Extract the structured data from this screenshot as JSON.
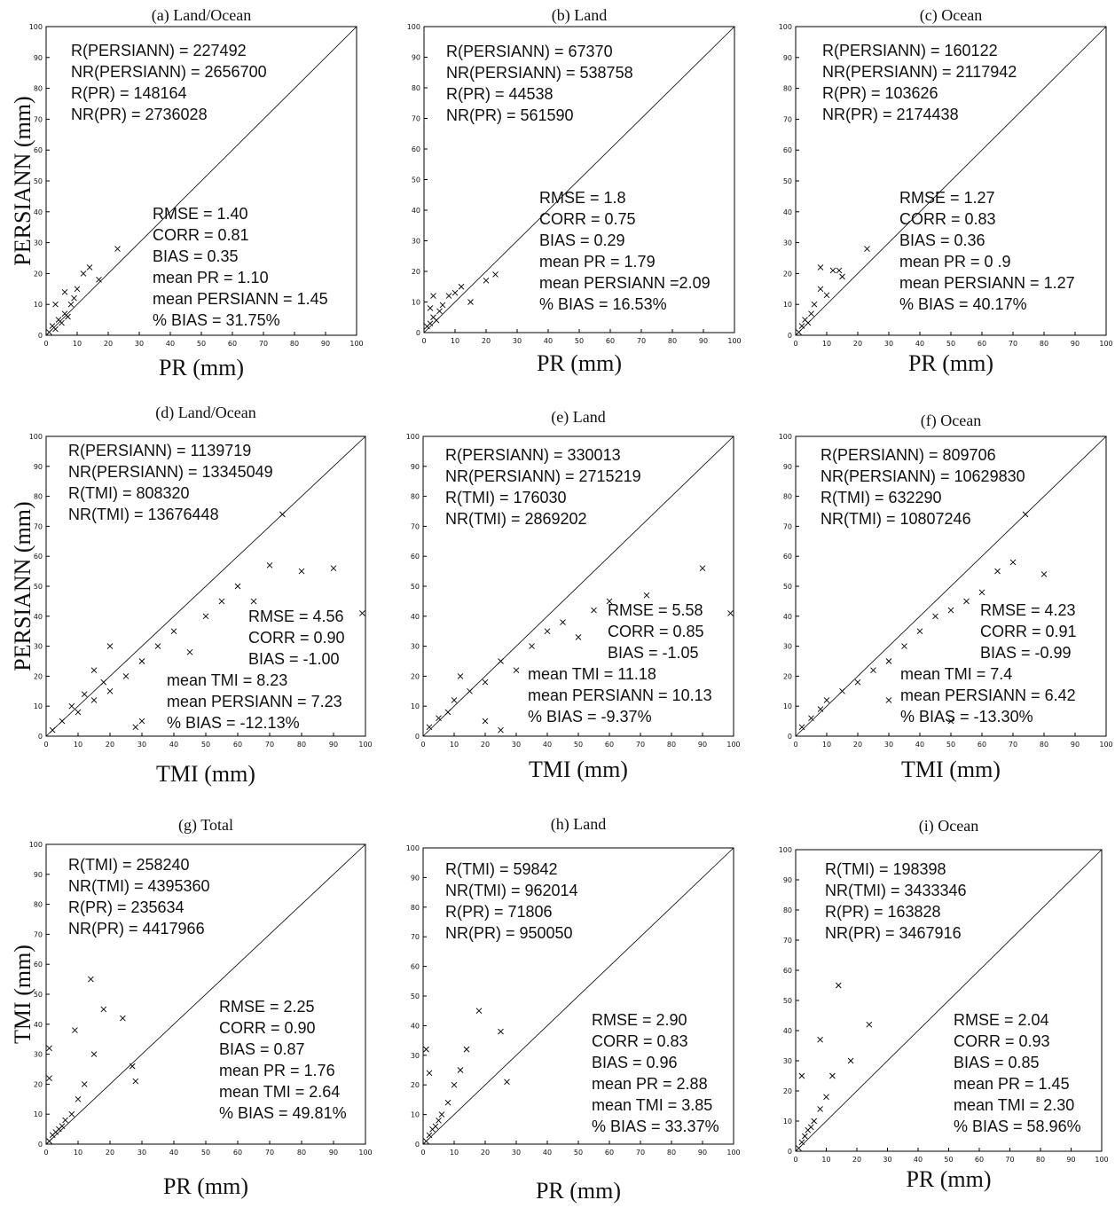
{
  "chart_data": [
    {
      "type": "scatter",
      "title": "(a) Land/Ocean",
      "x_label": "PR (mm)",
      "y_label": "PERSIANN (mm)",
      "xlim": [
        0,
        100
      ],
      "ylim": [
        0,
        100
      ],
      "xticks": [
        0,
        10,
        20,
        30,
        40,
        50,
        60,
        70,
        80,
        90,
        100
      ],
      "yticks": [
        0,
        10,
        20,
        30,
        40,
        50,
        60,
        70,
        80,
        90,
        100
      ],
      "annotations": [
        "R(PERSIANN) = 227492",
        "NR(PERSIANN) = 2656700",
        "R(PR) = 148164",
        "NR(PR) = 2736028",
        "RMSE = 1.40",
        "CORR = 0.81",
        "BIAS   = 0.35",
        "mean PR = 1.10",
        "mean PERSIANN = 1.45",
        "% BIAS = 31.75%"
      ],
      "series": [
        {
          "color": "#000000",
          "x": [
            1,
            2,
            3,
            4,
            5,
            6,
            7,
            8,
            9,
            10,
            12,
            14,
            17,
            23,
            3,
            6
          ],
          "values": [
            1,
            3,
            2,
            5,
            4,
            7,
            6,
            10,
            12,
            15,
            20,
            22,
            18,
            28,
            10,
            14
          ]
        }
      ]
    },
    {
      "type": "scatter",
      "title": "(b) Land",
      "x_label": "PR (mm)",
      "xlim": [
        0,
        100
      ],
      "ylim": [
        0,
        100
      ],
      "xticks": [
        0,
        10,
        20,
        30,
        40,
        50,
        60,
        70,
        80,
        90,
        100
      ],
      "yticks": [
        0,
        10,
        20,
        30,
        40,
        50,
        60,
        70,
        80,
        90,
        100
      ],
      "annotations": [
        "R(PERSIANN) = 67370",
        "NR(PERSIANN) = 538758",
        "R(PR) = 44538",
        "NR(PR) = 561590",
        "RMSE = 1.8",
        "CORR = 0.75",
        "BIAS   = 0.29",
        "mean PR = 1.79",
        "mean PERSIANN =2.09",
        "% BIAS = 16.53%"
      ],
      "series": [
        {
          "color": "#000000",
          "x": [
            1,
            2,
            3,
            4,
            5,
            6,
            8,
            10,
            12,
            15,
            20,
            23,
            3,
            2
          ],
          "values": [
            2,
            3,
            5,
            4,
            7,
            9,
            12,
            13,
            15,
            10,
            17,
            19,
            12,
            8
          ]
        }
      ]
    },
    {
      "type": "scatter",
      "title": "(c) Ocean",
      "x_label": "PR (mm)",
      "xlim": [
        0,
        100
      ],
      "ylim": [
        0,
        100
      ],
      "xticks": [
        0,
        10,
        20,
        30,
        40,
        50,
        60,
        70,
        80,
        90,
        100
      ],
      "yticks": [
        0,
        10,
        20,
        30,
        40,
        50,
        60,
        70,
        80,
        90,
        100
      ],
      "annotations": [
        "R(PERSIANN) = 160122",
        "NR(PERSIANN) = 2117942",
        "R(PR) = 103626",
        "NR(PR) = 2174438",
        "RMSE = 1.27",
        "CORR = 0.83",
        "BIAS   = 0.36",
        "mean PR = 0 .9",
        "mean PERSIANN = 1.27",
        "% BIAS = 40.17%"
      ],
      "series": [
        {
          "color": "#000000",
          "x": [
            1,
            2,
            3,
            4,
            5,
            6,
            8,
            10,
            12,
            15,
            23,
            8,
            14
          ],
          "values": [
            1,
            3,
            5,
            4,
            7,
            10,
            15,
            13,
            21,
            19,
            28,
            22,
            21
          ]
        }
      ]
    },
    {
      "type": "scatter",
      "title": "(d) Land/Ocean",
      "x_label": "TMI (mm)",
      "y_label": "PERSIANN (mm)",
      "xlim": [
        0,
        100
      ],
      "ylim": [
        0,
        100
      ],
      "xticks": [
        0,
        10,
        20,
        30,
        40,
        50,
        60,
        70,
        80,
        90,
        100
      ],
      "yticks": [
        0,
        10,
        20,
        30,
        40,
        50,
        60,
        70,
        80,
        90,
        100
      ],
      "annotations": [
        "R(PERSIANN) = 1139719",
        "NR(PERSIANN) = 13345049",
        "R(TMI) = 808320",
        "NR(TMI) = 13676448",
        "RMSE = 4.56",
        "CORR = 0.90",
        "BIAS   = -1.00",
        "mean TMI = 8.23",
        "mean PERSIANN = 7.23",
        "% BIAS = -12.13%"
      ],
      "series": [
        {
          "color": "#000000",
          "x": [
            2,
            5,
            8,
            10,
            12,
            15,
            18,
            20,
            25,
            30,
            35,
            40,
            45,
            50,
            55,
            60,
            65,
            70,
            74,
            80,
            90,
            99,
            20,
            30,
            15,
            28
          ],
          "values": [
            2,
            5,
            10,
            8,
            14,
            12,
            18,
            15,
            20,
            25,
            30,
            35,
            28,
            40,
            45,
            50,
            45,
            57,
            74,
            55,
            56,
            41,
            30,
            5,
            22,
            3
          ]
        }
      ]
    },
    {
      "type": "scatter",
      "title": "(e) Land",
      "x_label": "TMI (mm)",
      "xlim": [
        0,
        100
      ],
      "ylim": [
        0,
        100
      ],
      "xticks": [
        0,
        10,
        20,
        30,
        40,
        50,
        60,
        70,
        80,
        90,
        100
      ],
      "yticks": [
        0,
        10,
        20,
        30,
        40,
        50,
        60,
        70,
        80,
        90,
        100
      ],
      "annotations": [
        "R(PERSIANN) = 330013",
        "NR(PERSIANN) = 2715219",
        "R(TMI) = 176030",
        "NR(TMI) = 2869202",
        "RMSE = 5.58",
        "CORR = 0.85",
        "BIAS   = -1.05",
        "mean TMI = 11.18",
        "mean PERSIANN = 10.13",
        "% BIAS = -9.37%"
      ],
      "series": [
        {
          "color": "#000000",
          "x": [
            2,
            5,
            8,
            10,
            15,
            20,
            25,
            30,
            35,
            40,
            45,
            50,
            55,
            60,
            72,
            90,
            99,
            20,
            12,
            25
          ],
          "values": [
            3,
            6,
            8,
            12,
            15,
            18,
            25,
            22,
            30,
            35,
            38,
            33,
            42,
            45,
            47,
            56,
            41,
            5,
            20,
            2
          ]
        }
      ]
    },
    {
      "type": "scatter",
      "title": "(f) Ocean",
      "x_label": "TMI (mm)",
      "xlim": [
        0,
        100
      ],
      "ylim": [
        0,
        100
      ],
      "xticks": [
        0,
        10,
        20,
        30,
        40,
        50,
        60,
        70,
        80,
        90,
        100
      ],
      "yticks": [
        0,
        10,
        20,
        30,
        40,
        50,
        60,
        70,
        80,
        90,
        100
      ],
      "annotations": [
        "R(PERSIANN) = 809706",
        "NR(PERSIANN) = 10629830",
        "R(TMI) = 632290",
        "NR(TMI) = 10807246",
        "RMSE = 4.23",
        "CORR = 0.91",
        "BIAS   = -0.99",
        "mean TMI = 7.4",
        "mean PERSIANN = 6.42",
        "% BIAS = -13.30%"
      ],
      "series": [
        {
          "color": "#000000",
          "x": [
            2,
            5,
            8,
            10,
            15,
            20,
            25,
            30,
            35,
            40,
            45,
            50,
            55,
            60,
            65,
            70,
            74,
            80,
            50,
            30
          ],
          "values": [
            3,
            6,
            9,
            12,
            15,
            18,
            22,
            25,
            30,
            35,
            40,
            42,
            45,
            48,
            55,
            58,
            74,
            54,
            5,
            12
          ]
        }
      ]
    },
    {
      "type": "scatter",
      "title": "(g) Total",
      "x_label": "PR (mm)",
      "y_label": "TMI (mm)",
      "xlim": [
        0,
        100
      ],
      "ylim": [
        0,
        100
      ],
      "xticks": [
        0,
        10,
        20,
        30,
        40,
        50,
        60,
        70,
        80,
        90,
        100
      ],
      "yticks": [
        0,
        10,
        20,
        30,
        40,
        50,
        60,
        70,
        80,
        90,
        100
      ],
      "annotations": [
        "R(TMI) = 258240",
        "NR(TMI) = 4395360",
        "R(PR) = 235634",
        "NR(PR) = 4417966",
        "RMSE = 2.25",
        "CORR = 0.90",
        "BIAS   = 0.87",
        "mean PR = 1.76",
        "mean TMI = 2.64",
        "% BIAS = 49.81%"
      ],
      "series": [
        {
          "color": "#000000",
          "x": [
            1,
            2,
            3,
            4,
            5,
            6,
            8,
            10,
            12,
            14,
            18,
            24,
            27,
            28,
            15,
            9,
            1,
            1
          ],
          "values": [
            1,
            3,
            4,
            5,
            6,
            8,
            10,
            15,
            20,
            55,
            45,
            42,
            26,
            21,
            30,
            38,
            32,
            22
          ]
        }
      ]
    },
    {
      "type": "scatter",
      "title": "(h) Land",
      "x_label": "PR (mm)",
      "xlim": [
        0,
        100
      ],
      "ylim": [
        0,
        100
      ],
      "xticks": [
        0,
        10,
        20,
        30,
        40,
        50,
        60,
        70,
        80,
        90,
        100
      ],
      "yticks": [
        0,
        10,
        20,
        30,
        40,
        50,
        60,
        70,
        80,
        90,
        100
      ],
      "annotations": [
        "R(TMI) = 59842",
        "NR(TMI) = 962014",
        "R(PR) = 71806",
        "NR(PR) = 950050",
        "RMSE = 2.90",
        "CORR = 0.83",
        "BIAS   = 0.96",
        "mean PR = 2.88",
        "mean TMI = 3.85",
        "% BIAS = 33.37%"
      ],
      "series": [
        {
          "color": "#000000",
          "x": [
            1,
            2,
            3,
            4,
            5,
            6,
            8,
            10,
            12,
            14,
            18,
            25,
            27,
            1,
            2
          ],
          "values": [
            1,
            3,
            5,
            6,
            8,
            10,
            14,
            20,
            25,
            32,
            45,
            38,
            21,
            32,
            24
          ]
        }
      ]
    },
    {
      "type": "scatter",
      "title": "(i) Ocean",
      "x_label": "PR (mm)",
      "xlim": [
        0,
        100
      ],
      "ylim": [
        0,
        100
      ],
      "xticks": [
        0,
        10,
        20,
        30,
        40,
        50,
        60,
        70,
        80,
        90,
        100
      ],
      "yticks": [
        0,
        10,
        20,
        30,
        40,
        50,
        60,
        70,
        80,
        90,
        100
      ],
      "annotations": [
        "R(TMI) = 198398",
        "NR(TMI) = 3433346",
        "R(PR) = 163828",
        "NR(PR) = 3467916",
        "RMSE = 2.04",
        "CORR = 0.93",
        "BIAS   = 0.85",
        "mean PR = 1.45",
        "mean TMI = 2.30",
        "% BIAS = 58.96%"
      ],
      "series": [
        {
          "color": "#000000",
          "x": [
            1,
            2,
            3,
            4,
            5,
            6,
            8,
            10,
            12,
            14,
            18,
            24,
            8,
            2
          ],
          "values": [
            1,
            3,
            5,
            7,
            8,
            10,
            14,
            18,
            25,
            55,
            30,
            42,
            37,
            25
          ]
        }
      ]
    }
  ]
}
